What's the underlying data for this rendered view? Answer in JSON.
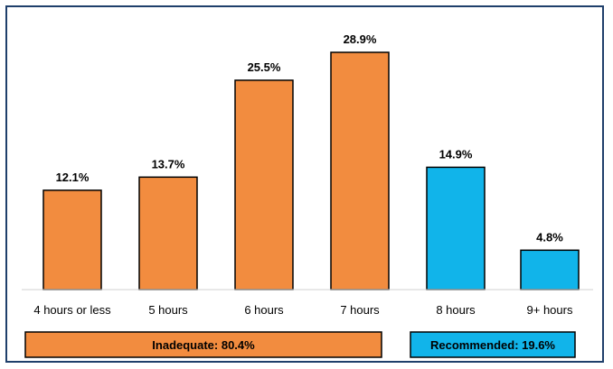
{
  "chart_data": {
    "type": "bar",
    "categories": [
      "4 hours or less",
      "5 hours",
      "6 hours",
      "7 hours",
      "8 hours",
      "9+ hours"
    ],
    "values": [
      12.1,
      13.7,
      25.5,
      28.9,
      14.9,
      4.8
    ],
    "data_labels": [
      "12.1%",
      "13.7%",
      "25.5%",
      "28.9%",
      "14.9%",
      "4.8%"
    ],
    "bar_colors": [
      "#f28c3f",
      "#f28c3f",
      "#f28c3f",
      "#f28c3f",
      "#11b4ea",
      "#11b4ea"
    ],
    "ylim": [
      0,
      30
    ],
    "grid": false,
    "legend": false,
    "groups": [
      {
        "label": "Inadequate: 80.4%",
        "color": "#f28c3f",
        "from": 0,
        "to": 3
      },
      {
        "label": "Recommended: 19.6%",
        "color": "#11b4ea",
        "from": 4,
        "to": 5
      }
    ]
  }
}
